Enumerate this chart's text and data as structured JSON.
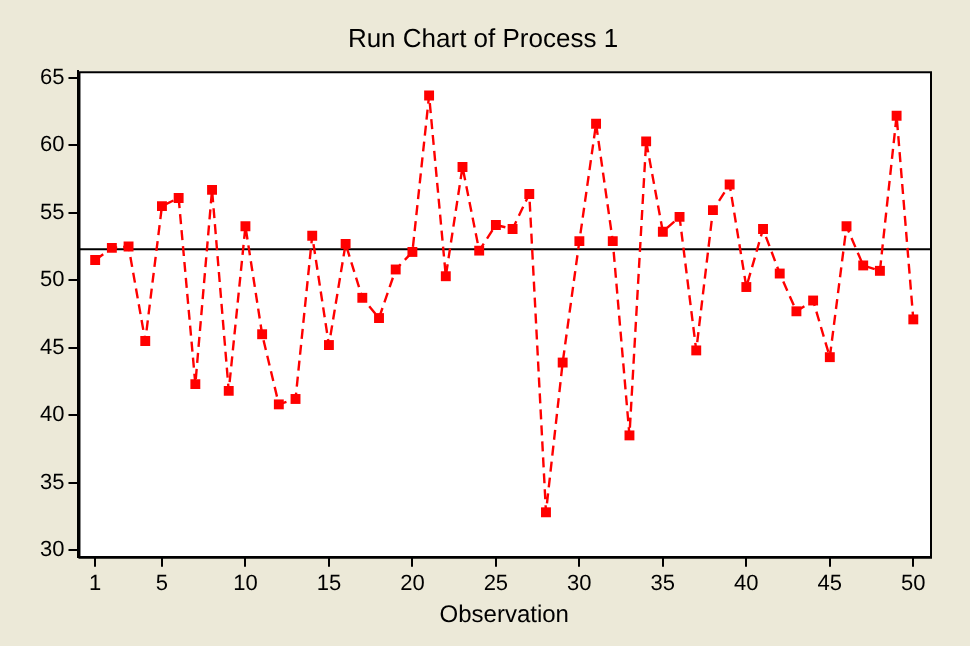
{
  "chart_data": {
    "type": "line",
    "title": "Run Chart of Process 1",
    "xlabel": "Observation",
    "x": [
      1,
      2,
      3,
      4,
      5,
      6,
      7,
      8,
      9,
      10,
      11,
      12,
      13,
      14,
      15,
      16,
      17,
      18,
      19,
      20,
      21,
      22,
      23,
      24,
      25,
      26,
      27,
      28,
      29,
      30,
      31,
      32,
      33,
      34,
      35,
      36,
      37,
      38,
      39,
      40,
      41,
      42,
      43,
      44,
      45,
      46,
      47,
      48,
      49,
      50
    ],
    "series": [
      {
        "color": "#ff0000",
        "values": [
          51.5,
          52.4,
          52.5,
          45.5,
          55.5,
          56.1,
          42.3,
          56.7,
          41.8,
          54.0,
          46.0,
          40.8,
          41.2,
          53.3,
          45.2,
          52.7,
          48.7,
          47.2,
          50.8,
          52.1,
          63.7,
          50.3,
          58.4,
          52.2,
          54.1,
          53.8,
          56.4,
          32.8,
          43.9,
          52.9,
          61.6,
          52.9,
          38.5,
          60.3,
          53.6,
          54.7,
          44.8,
          55.2,
          57.1,
          49.5,
          53.8,
          50.5,
          47.7,
          48.5,
          44.3,
          54.0,
          51.1,
          50.7,
          62.2,
          47.1
        ]
      }
    ],
    "xlim": [
      0,
      51
    ],
    "xticks": [
      1,
      5,
      10,
      15,
      20,
      25,
      30,
      35,
      40,
      45,
      50
    ],
    "ylim": [
      29.5,
      65.5
    ],
    "yticks": [
      30,
      35,
      40,
      45,
      50,
      55,
      60,
      65
    ],
    "ref_lines": [
      {
        "axis": "y",
        "value": 52.3,
        "color": "#000000",
        "line_style": "solid"
      }
    ],
    "grid": false,
    "legend": false,
    "marker": "square",
    "line_style": "dashed"
  }
}
